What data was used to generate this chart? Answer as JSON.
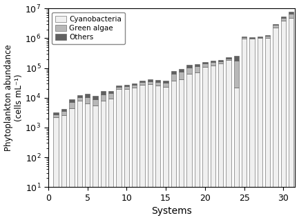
{
  "title": "",
  "xlabel": "Systems",
  "ylabel": "Phytoplankton abundance\n(cells mL⁻¹)",
  "ylim_min": 10,
  "ylim_max": 10000000.0,
  "xticks": [
    0,
    5,
    10,
    15,
    20,
    25,
    30
  ],
  "legend_labels": [
    "Cyanobacteria",
    "Green algae",
    "Others"
  ],
  "colors": [
    "#f0f0f0",
    "#b8b8b8",
    "#606060"
  ],
  "edgecolor": "#555555",
  "cyanobacteria": [
    2200,
    2600,
    4500,
    8000,
    6500,
    5500,
    8000,
    9500,
    20000,
    20000,
    22000,
    27000,
    28000,
    26000,
    23000,
    38000,
    42000,
    65000,
    70000,
    110000,
    120000,
    140000,
    185000,
    22000,
    950000,
    950000,
    1000000,
    1050000,
    2300000,
    4000000,
    4800000
  ],
  "green_algae": [
    600,
    900,
    2500,
    2500,
    4000,
    3500,
    5000,
    4500,
    3500,
    4500,
    5000,
    6000,
    8000,
    8000,
    9000,
    25000,
    35000,
    40000,
    45000,
    30000,
    35000,
    30000,
    25000,
    150000,
    120000,
    80000,
    80000,
    150000,
    500000,
    900000,
    2000000
  ],
  "others": [
    500,
    700,
    2000,
    2000,
    3000,
    2500,
    3500,
    3000,
    2500,
    2500,
    3500,
    4000,
    5000,
    5000,
    6000,
    15000,
    18000,
    20000,
    22000,
    15000,
    20000,
    18000,
    15000,
    80000,
    60000,
    40000,
    40000,
    80000,
    200000,
    400000,
    1000000
  ]
}
